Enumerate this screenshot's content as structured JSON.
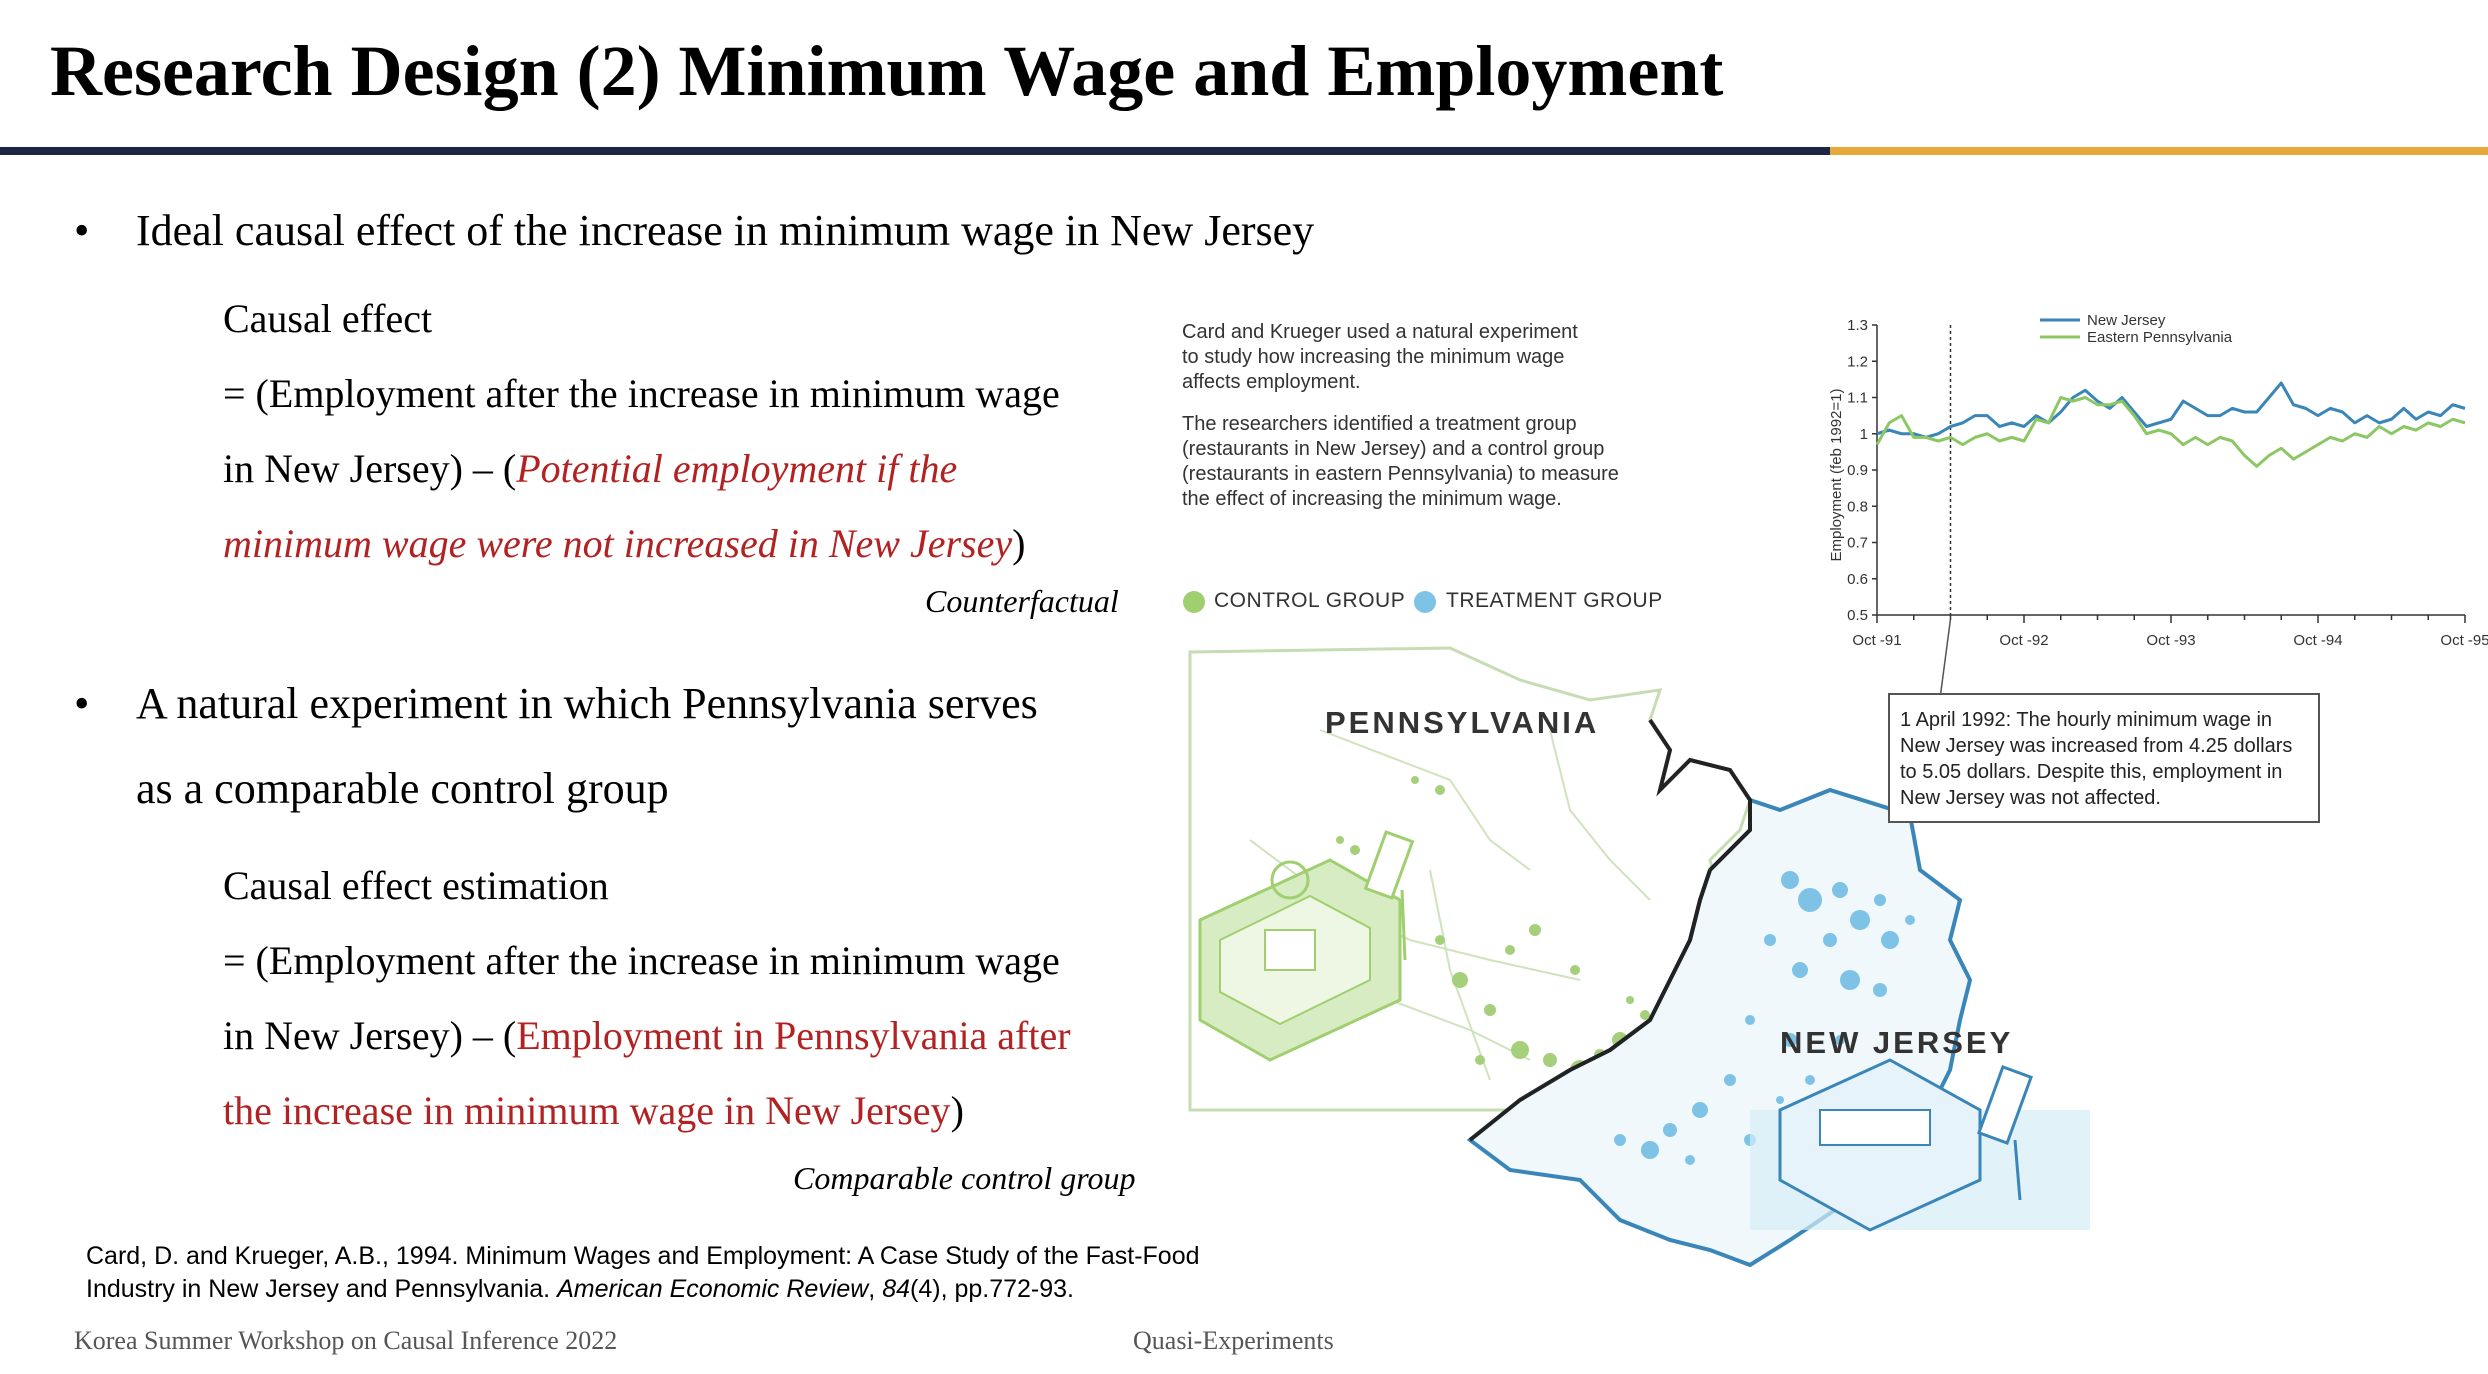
{
  "slide": {
    "title": "Research Design (2) Minimum Wage and Employment",
    "bullet1": "Ideal causal effect of the increase in minimum wage in New Jersey",
    "causal_heading": "Causal effect",
    "causal_line1": "= (Employment after the increase in minimum wage",
    "causal_line2_black": "in New Jersey) – (",
    "causal_line2_red": "Potential employment if the",
    "causal_line3_red": "minimum wage were not increased in New Jersey",
    "causal_line3_black": ")",
    "counterfactual_label": "Counterfactual",
    "bullet2_line1": "A natural experiment in which Pennsylvania serves",
    "bullet2_line2": "as a comparable control group",
    "estimation_heading": "Causal effect estimation",
    "est_line1": "= (Employment after the increase in minimum wage",
    "est_line2_black": "in New Jersey) – (",
    "est_line2_red": "Employment in Pennsylvania after",
    "est_line3_red": "the increase in minimum wage in New Jersey",
    "est_line3_black": ")",
    "comparable_label": "Comparable control group",
    "citation_line1": "Card, D. and Krueger, A.B., 1994. Minimum Wages and Employment: A Case Study of the Fast-Food",
    "citation_line2_a": "Industry in New Jersey and Pennsylvania. ",
    "citation_line2_journal": "American Economic Review",
    "citation_line2_b": ", ",
    "citation_line2_vol": "84",
    "citation_line2_c": "(4), pp.772-93.",
    "footer_left": "Korea Summer Workshop on Causal Inference 2022",
    "footer_center": "Quasi-Experiments"
  },
  "figure": {
    "caption_p1": [
      "Card and Krueger used a natural experiment",
      "to study how increasing the minimum wage",
      "affects employment."
    ],
    "caption_p2": [
      "The researchers identified a treatment group",
      "(restaurants in New Jersey) and a control group",
      "(restaurants in eastern Pennsylvania) to measure",
      "the effect of increasing the minimum wage."
    ],
    "legend_control": "CONTROL GROUP",
    "legend_treatment": "TREATMENT GROUP",
    "pennsylvania_label": "PENNSYLVANIA",
    "new_jersey_label": "NEW JERSEY",
    "callout_text": "1 April 1992: The hourly minimum wage in New Jersey was increased from 4.25 dollars to 5.05 dollars. Despite this, employment in New Jersey was not affected.",
    "colors": {
      "control": "#9fcf6f",
      "treatment": "#7ec3e6",
      "nj_line": "#3a86b8",
      "pa_line": "#8cc763"
    }
  },
  "chart_data": {
    "type": "line",
    "ylabel": "Employment (feb 1992=1)",
    "xlabel": "",
    "x_ticks": [
      "Oct -91",
      "Oct -92",
      "Oct -93",
      "Oct -94",
      "Oct -95"
    ],
    "y_ticks": [
      0.5,
      0.6,
      0.7,
      0.8,
      0.9,
      1,
      1.1,
      1.2,
      1.3
    ],
    "ylim": [
      0.5,
      1.3
    ],
    "xlim": [
      0,
      48
    ],
    "event_marker_x": 6,
    "legend_position": "top-right",
    "series": [
      {
        "name": "New Jersey",
        "color": "#3a86b8",
        "values": [
          1.0,
          1.01,
          1.0,
          1.0,
          0.99,
          1.0,
          1.02,
          1.03,
          1.05,
          1.05,
          1.02,
          1.03,
          1.02,
          1.05,
          1.03,
          1.06,
          1.1,
          1.12,
          1.09,
          1.07,
          1.1,
          1.06,
          1.02,
          1.03,
          1.04,
          1.09,
          1.07,
          1.05,
          1.05,
          1.07,
          1.06,
          1.06,
          1.1,
          1.14,
          1.08,
          1.07,
          1.05,
          1.07,
          1.06,
          1.03,
          1.05,
          1.03,
          1.04,
          1.07,
          1.04,
          1.06,
          1.05,
          1.08,
          1.07
        ]
      },
      {
        "name": "Eastern Pennsylvania",
        "color": "#8cc763",
        "values": [
          0.97,
          1.03,
          1.05,
          0.99,
          0.99,
          0.98,
          0.99,
          0.97,
          0.99,
          1.0,
          0.98,
          0.99,
          0.98,
          1.04,
          1.03,
          1.1,
          1.09,
          1.1,
          1.08,
          1.08,
          1.09,
          1.05,
          1.0,
          1.01,
          1.0,
          0.97,
          0.99,
          0.97,
          0.99,
          0.98,
          0.94,
          0.91,
          0.94,
          0.96,
          0.93,
          0.95,
          0.97,
          0.99,
          0.98,
          1.0,
          0.99,
          1.02,
          1.0,
          1.02,
          1.01,
          1.03,
          1.02,
          1.04,
          1.03
        ]
      }
    ]
  }
}
